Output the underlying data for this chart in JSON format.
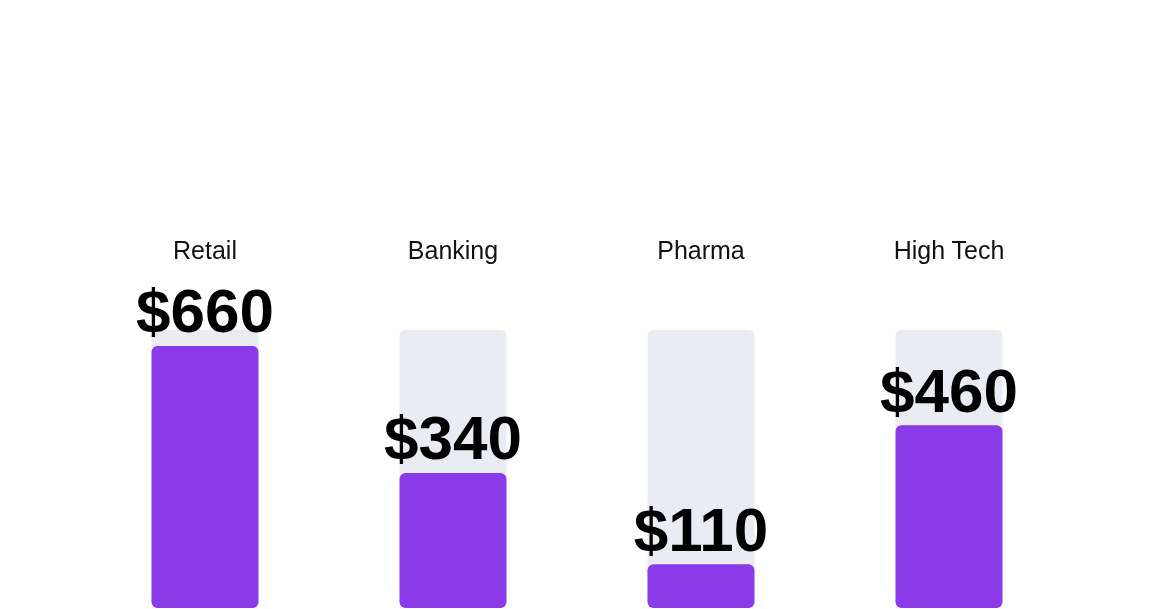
{
  "chart_data": {
    "type": "bar",
    "categories": [
      "Retail",
      "Banking",
      "Pharma",
      "High Tech"
    ],
    "values": [
      660,
      340,
      110,
      460
    ],
    "value_labels": [
      "$660",
      "$340",
      "$110",
      "$460"
    ],
    "color": "#8a3ae8"
  }
}
